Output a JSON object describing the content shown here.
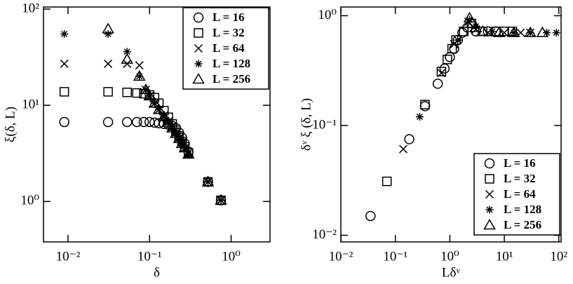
{
  "chart_data": [
    {
      "type": "scatter",
      "x_label": "δ",
      "y_label": "ξ(δ, L)",
      "log_x": true,
      "log_y": true,
      "grid": false,
      "legend": "upper right",
      "xlim": [
        0.005,
        3
      ],
      "ylim": [
        0.38,
        105
      ],
      "xticks": [
        {
          "value": 0.01,
          "label": "10⁻²"
        },
        {
          "value": 0.1,
          "label": "10⁻¹"
        },
        {
          "value": 1,
          "label": "10⁰"
        }
      ],
      "yticks": [
        {
          "value": 1,
          "label": "10⁰"
        },
        {
          "value": 10,
          "label": "10¹"
        },
        {
          "value": 100,
          "label": "10²"
        }
      ],
      "series": [
        {
          "name": "L = 16",
          "marker": "circle",
          "color": "#000000",
          "x": [
            0.009,
            0.031,
            0.053,
            0.07,
            0.085,
            0.1,
            0.115,
            0.13,
            0.15,
            0.17,
            0.19,
            0.21,
            0.23,
            0.25,
            0.27,
            0.3,
            0.52,
            0.75
          ],
          "values": [
            6.7,
            6.7,
            6.7,
            6.7,
            6.7,
            6.7,
            6.6,
            6.5,
            6.4,
            6.3,
            6.1,
            5.8,
            5.2,
            4.6,
            4.0,
            3.3,
            1.6,
            1.03
          ]
        },
        {
          "name": "L = 32",
          "marker": "square",
          "color": "#000000",
          "x": [
            0.009,
            0.031,
            0.053,
            0.07,
            0.085,
            0.1,
            0.115,
            0.13,
            0.15,
            0.17,
            0.19,
            0.21,
            0.23,
            0.25,
            0.27,
            0.3,
            0.52,
            0.75
          ],
          "values": [
            13.8,
            13.8,
            13.6,
            13.4,
            13.2,
            12.8,
            12.0,
            10.5,
            8.8,
            7.5,
            6.4,
            5.5,
            4.8,
            4.2,
            3.7,
            3.2,
            1.6,
            1.03
          ]
        },
        {
          "name": "L = 64",
          "marker": "x",
          "color": "#000000",
          "x": [
            0.009,
            0.031,
            0.053,
            0.075,
            0.09,
            0.1,
            0.115,
            0.13,
            0.15,
            0.17,
            0.19,
            0.21,
            0.23,
            0.25,
            0.27,
            0.3,
            0.52,
            0.75
          ],
          "values": [
            27,
            27,
            27,
            26,
            14.5,
            12.5,
            10.5,
            9.0,
            7.8,
            6.8,
            5.9,
            5.2,
            4.6,
            4.1,
            3.6,
            3.2,
            1.6,
            1.03
          ]
        },
        {
          "name": "L = 128",
          "marker": "star",
          "color": "#000000",
          "x": [
            0.009,
            0.031,
            0.053,
            0.075,
            0.09,
            0.1,
            0.115,
            0.13,
            0.15,
            0.17,
            0.19,
            0.21,
            0.23,
            0.25,
            0.27,
            0.3,
            0.52,
            0.75
          ],
          "values": [
            55,
            55,
            36,
            20,
            14.5,
            12.5,
            10.5,
            9.0,
            7.6,
            6.6,
            5.8,
            5.1,
            4.5,
            4.0,
            3.6,
            3.1,
            1.6,
            1.03
          ]
        },
        {
          "name": "L = 256",
          "marker": "triangle",
          "color": "#000000",
          "x": [
            0.031,
            0.053,
            0.075,
            0.09,
            0.1,
            0.115,
            0.13,
            0.15,
            0.17,
            0.19,
            0.21,
            0.23,
            0.25,
            0.27,
            0.3,
            0.52,
            0.75
          ],
          "values": [
            62,
            30,
            20,
            14.5,
            12.5,
            10.5,
            9.0,
            7.6,
            6.6,
            5.8,
            5.1,
            4.5,
            4.0,
            3.6,
            3.1,
            1.6,
            1.03
          ]
        }
      ]
    },
    {
      "type": "scatter",
      "x_label": "Lδᵛ",
      "y_label": "δᵛ ξ (δ, L)",
      "log_x": true,
      "log_y": true,
      "grid": false,
      "legend": "lower right",
      "xlim": [
        0.01,
        110
      ],
      "ylim": [
        0.0087,
        1.2
      ],
      "xticks": [
        {
          "value": 0.01,
          "label": "10⁻²"
        },
        {
          "value": 0.1,
          "label": "10⁻¹"
        },
        {
          "value": 1,
          "label": "10⁰"
        },
        {
          "value": 10,
          "label": "10¹"
        },
        {
          "value": 100,
          "label": "10²"
        }
      ],
      "yticks": [
        {
          "value": 0.01,
          "label": "10⁻²"
        },
        {
          "value": 0.1,
          "label": "10⁻¹"
        },
        {
          "value": 1,
          "label": "10⁰"
        }
      ],
      "series": [
        {
          "name": "L = 16",
          "marker": "circle",
          "color": "#000000",
          "x": [
            0.035,
            0.18,
            0.35,
            0.6,
            0.8,
            1.0,
            1.2,
            1.4,
            1.7,
            2.1,
            3,
            5,
            7
          ],
          "values": [
            0.015,
            0.075,
            0.15,
            0.24,
            0.33,
            0.42,
            0.5,
            0.6,
            0.7,
            0.78,
            0.72,
            0.72,
            0.72
          ]
        },
        {
          "name": "L = 32",
          "marker": "square",
          "color": "#000000",
          "x": [
            0.07,
            0.35,
            0.7,
            0.9,
            1.1,
            1.3,
            1.8,
            2.5,
            4,
            7,
            10,
            14
          ],
          "values": [
            0.031,
            0.155,
            0.31,
            0.4,
            0.5,
            0.6,
            0.72,
            0.85,
            0.72,
            0.72,
            0.72,
            0.72
          ]
        },
        {
          "name": "L = 64",
          "marker": "x",
          "color": "#000000",
          "x": [
            0.14,
            0.7,
            1.2,
            2.2,
            3,
            5,
            10,
            20,
            30
          ],
          "values": [
            0.061,
            0.3,
            0.55,
            0.88,
            0.75,
            0.7,
            0.7,
            0.7,
            0.7
          ]
        },
        {
          "name": "L = 128",
          "marker": "star",
          "color": "#000000",
          "x": [
            0.28,
            1.4,
            2.3,
            3,
            6,
            15,
            30,
            60,
            90
          ],
          "values": [
            0.12,
            0.6,
            0.92,
            0.8,
            0.72,
            0.7,
            0.7,
            0.7,
            0.7
          ]
        },
        {
          "name": "L = 256",
          "marker": "triangle",
          "color": "#000000",
          "x": [
            2.3,
            2.6,
            3,
            4,
            8,
            15,
            30,
            50
          ],
          "values": [
            0.95,
            0.85,
            0.78,
            0.72,
            0.7,
            0.7,
            0.7,
            0.7
          ]
        }
      ]
    }
  ]
}
